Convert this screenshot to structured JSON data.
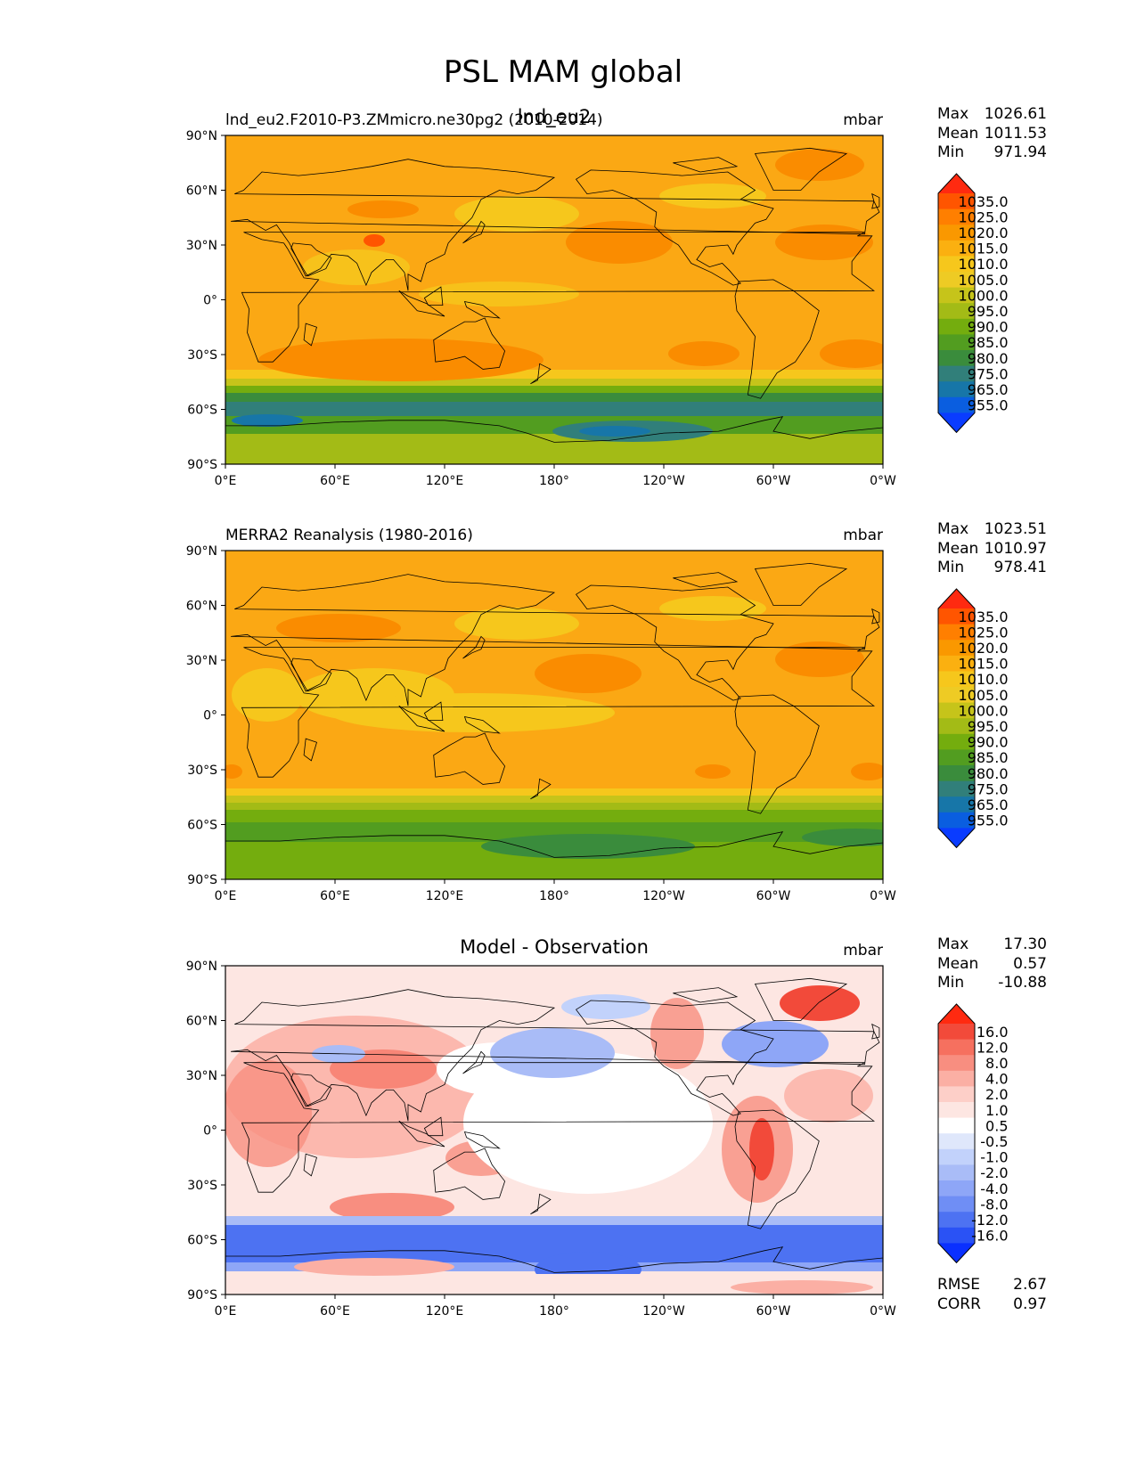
{
  "figure": {
    "title": "PSL MAM global"
  },
  "axes_ticks": {
    "lat_labels": [
      "90°N",
      "60°N",
      "30°N",
      "0°",
      "30°S",
      "60°S",
      "90°S"
    ],
    "lon_labels": [
      "0°E",
      "60°E",
      "120°E",
      "180°",
      "120°W",
      "60°W",
      "0°W"
    ]
  },
  "panels": [
    {
      "id": "model",
      "left_title": "lnd_eu2.F2010-P3.ZMmicro.ne30pg2 (2010-2014)",
      "center_title": "lnd_eu2",
      "right_title": "mbar",
      "stats": {
        "max_label": "Max",
        "max": "1026.61",
        "mean_label": "Mean",
        "mean": "1011.53",
        "min_label": "Min",
        "min": "971.94"
      },
      "colorbar_labels": [
        "1035.0",
        "1025.0",
        "1020.0",
        "1015.0",
        "1010.0",
        "1005.0",
        "1000.0",
        "995.0",
        "990.0",
        "985.0",
        "980.0",
        "975.0",
        "965.0",
        "955.0"
      ]
    },
    {
      "id": "obs",
      "left_title": "MERRA2 Reanalysis (1980-2016)",
      "center_title": "",
      "right_title": "mbar",
      "stats": {
        "max_label": "Max",
        "max": "1023.51",
        "mean_label": "Mean",
        "mean": "1010.97",
        "min_label": "Min",
        "min": "978.41"
      },
      "colorbar_labels": [
        "1035.0",
        "1025.0",
        "1020.0",
        "1015.0",
        "1010.0",
        "1005.0",
        "1000.0",
        "995.0",
        "990.0",
        "985.0",
        "980.0",
        "975.0",
        "965.0",
        "955.0"
      ]
    },
    {
      "id": "diff",
      "left_title": "",
      "center_title": "Model - Observation",
      "right_title": "mbar",
      "stats": {
        "max_label": "Max",
        "max": "17.30",
        "mean_label": "Mean",
        "mean": "0.57",
        "min_label": "Min",
        "min": "-10.88"
      },
      "colorbar_labels": [
        "16.0",
        "12.0",
        "8.0",
        "4.0",
        "2.0",
        "1.0",
        "0.5",
        "-0.5",
        "-1.0",
        "-2.0",
        "-4.0",
        "-8.0",
        "-12.0",
        "-16.0"
      ],
      "rmse_label": "RMSE",
      "rmse": "2.67",
      "corr_label": "CORR",
      "corr": "0.97"
    }
  ],
  "colors": {
    "abs_scale": [
      "#ff2a10",
      "#ff5500",
      "#ff7f00",
      "#fa9800",
      "#fbb010",
      "#f6c71c",
      "#eecb24",
      "#c6c41a",
      "#a3bb16",
      "#74ad0e",
      "#529d20",
      "#3a8c3c",
      "#317f7a",
      "#1776a8",
      "#0a5ee0",
      "#0a3cff"
    ],
    "diff_scale": [
      "#ff2a10",
      "#f24a3a",
      "#f6705f",
      "#f88e80",
      "#fbafa4",
      "#fdcfc8",
      "#fde6e2",
      "#ffffff",
      "#dfe7fb",
      "#c2d2fb",
      "#a9bcf7",
      "#8ea6f7",
      "#6f8ef5",
      "#4d72f2",
      "#2a52f5",
      "#0a30ff"
    ]
  }
}
